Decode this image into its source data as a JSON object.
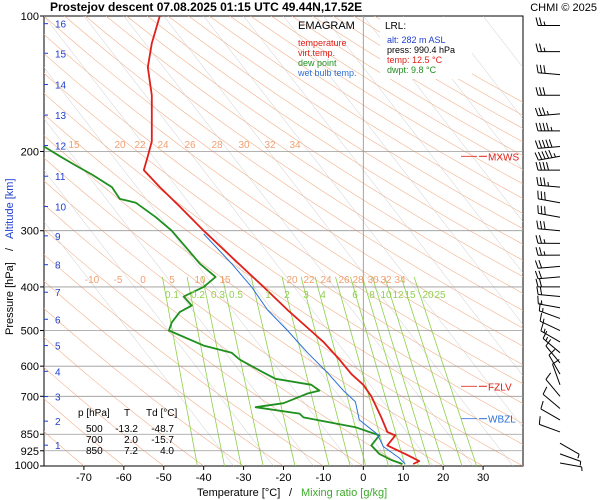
{
  "chart_data": {
    "type": "line",
    "title": "Prostejov   descent   07.08.2025 01:15 UTC  49.44N,17.52E",
    "credit": "CHMI © 2025",
    "xlabel_temp": "Temperature [°C]",
    "xlabel_sep": "/",
    "xlabel_mix": "Mixing ratio [g/kg]",
    "ylabel_pressure": "Pressure [hPa]",
    "ylabel_sep": "/",
    "ylabel_alt": "Altitude [km]",
    "xlim": [
      -80,
      40
    ],
    "ylim": [
      1000,
      100
    ],
    "y_scale": "log",
    "x_ticks": [
      -70,
      -60,
      -50,
      -40,
      -30,
      -20,
      -10,
      0,
      10,
      20,
      30
    ],
    "pressure_ticks": [
      100,
      200,
      300,
      400,
      500,
      600,
      700,
      850,
      925,
      1000
    ],
    "altitude_ticks": [
      {
        "km": 1,
        "p": 899
      },
      {
        "km": 2,
        "p": 795
      },
      {
        "km": 3,
        "p": 701
      },
      {
        "km": 4,
        "p": 616
      },
      {
        "km": 5,
        "p": 540
      },
      {
        "km": 6,
        "p": 472
      },
      {
        "km": 7,
        "p": 411
      },
      {
        "km": 8,
        "p": 357
      },
      {
        "km": 9,
        "p": 308
      },
      {
        "km": 10,
        "p": 265
      },
      {
        "km": 11,
        "p": 227
      },
      {
        "km": 12,
        "p": 194
      },
      {
        "km": 13,
        "p": 166
      },
      {
        "km": 14,
        "p": 142
      },
      {
        "km": 15,
        "p": 121
      },
      {
        "km": 16,
        "p": 104
      }
    ],
    "legend": {
      "title": "EMAGRAM",
      "items": [
        {
          "label": "temperature",
          "color": "#e0201a"
        },
        {
          "label": "virt.temp.",
          "color": "#e0201a"
        },
        {
          "label": "dew point",
          "color": "#1f8f1f"
        },
        {
          "label": "wet bulb temp.",
          "color": "#2a6fd6"
        }
      ]
    },
    "lrl": {
      "title": "LRL:",
      "alt": "alt: 282 m ASL",
      "press": "press: 990.4 hPa",
      "temp": "temp: 12.5 °C",
      "dwpt": "dwpt: 9.8 °C"
    },
    "levels": [
      {
        "label": "MXWS",
        "p": 205,
        "color": "#e0201a"
      },
      {
        "label": "FZLV",
        "p": 665,
        "color": "#e0201a"
      },
      {
        "label": "WBZL",
        "p": 785,
        "color": "#2a6fd6"
      }
    ],
    "table": {
      "headers": [
        "p [hPa]",
        "T",
        "Td [°C]"
      ],
      "rows": [
        [
          "500",
          "-13.2",
          "-48.7"
        ],
        [
          "700",
          "2.0",
          "-15.7"
        ],
        [
          "850",
          "7.2",
          "4.0"
        ]
      ]
    },
    "mixing_labels_upper": [
      "15",
      "20",
      "22",
      "24",
      "26",
      "28",
      "30",
      "32",
      "34"
    ],
    "mixing_labels_mid": [
      "-10",
      "-5",
      "0",
      "5",
      "10",
      "15",
      "20",
      "22",
      "24",
      "26",
      "28",
      "30",
      "32",
      "34"
    ],
    "mixing_ratio_labels": [
      "0.1",
      "0.2",
      "0.3",
      "0.5",
      "1",
      "2",
      "3",
      "4",
      "6",
      "8",
      "10",
      "12",
      "15",
      "20",
      "25"
    ],
    "series": [
      {
        "name": "temperature",
        "color": "#e0201a",
        "points": [
          [
            12.5,
            990
          ],
          [
            14,
            975
          ],
          [
            11,
            945
          ],
          [
            6,
            900
          ],
          [
            8,
            855
          ],
          [
            6,
            840
          ],
          [
            4.5,
            780
          ],
          [
            2,
            700
          ],
          [
            0,
            660
          ],
          [
            -3,
            625
          ],
          [
            -6,
            580
          ],
          [
            -10,
            530
          ],
          [
            -13.2,
            500
          ],
          [
            -19,
            450
          ],
          [
            -25,
            400
          ],
          [
            -32,
            350
          ],
          [
            -40,
            300
          ],
          [
            -46,
            265
          ],
          [
            -51,
            240
          ],
          [
            -55,
            220
          ],
          [
            -54,
            205
          ],
          [
            -53,
            190
          ],
          [
            -53,
            170
          ],
          [
            -53,
            150
          ],
          [
            -54,
            130
          ],
          [
            -53,
            115
          ],
          [
            -51,
            100
          ]
        ]
      },
      {
        "name": "dew point",
        "color": "#1f8f1f",
        "points": [
          [
            9.8,
            990
          ],
          [
            7,
            970
          ],
          [
            4,
            940
          ],
          [
            2,
            900
          ],
          [
            4,
            855
          ],
          [
            -2,
            820
          ],
          [
            -15,
            780
          ],
          [
            -16,
            765
          ],
          [
            -27,
            740
          ],
          [
            -20,
            725
          ],
          [
            -15.7,
            700
          ],
          [
            -14,
            690
          ],
          [
            -11,
            680
          ],
          [
            -13,
            660
          ],
          [
            -22,
            640
          ],
          [
            -25,
            620
          ],
          [
            -31,
            580
          ],
          [
            -33,
            560
          ],
          [
            -40,
            540
          ],
          [
            -48.7,
            500
          ],
          [
            -48,
            480
          ],
          [
            -46,
            455
          ],
          [
            -43,
            440
          ],
          [
            -45,
            420
          ],
          [
            -40,
            400
          ],
          [
            -37,
            380
          ],
          [
            -41,
            355
          ],
          [
            -44,
            330
          ],
          [
            -48,
            300
          ],
          [
            -52,
            280
          ],
          [
            -57,
            260
          ],
          [
            -61,
            255
          ],
          [
            -63,
            240
          ],
          [
            -68,
            225
          ],
          [
            -72,
            215
          ],
          [
            -76,
            205
          ],
          [
            -80,
            195
          ]
        ]
      },
      {
        "name": "wet bulb temp.",
        "color": "#2a6fd6",
        "points": [
          [
            10.5,
            990
          ],
          [
            9,
            960
          ],
          [
            5,
            905
          ],
          [
            3.5,
            850
          ],
          [
            -1,
            790
          ],
          [
            -2,
            720
          ],
          [
            -5,
            680
          ],
          [
            -9,
            620
          ],
          [
            -14,
            560
          ],
          [
            -19,
            500
          ],
          [
            -24,
            450
          ],
          [
            -28,
            400
          ],
          [
            -33,
            355
          ],
          [
            -40,
            305
          ]
        ]
      }
    ],
    "wind_barbs": [
      {
        "p": 105,
        "dir": 270,
        "kt": 25
      },
      {
        "p": 120,
        "dir": 270,
        "kt": 25
      },
      {
        "p": 135,
        "dir": 275,
        "kt": 30
      },
      {
        "p": 150,
        "dir": 270,
        "kt": 30
      },
      {
        "p": 165,
        "dir": 265,
        "kt": 35
      },
      {
        "p": 180,
        "dir": 270,
        "kt": 45
      },
      {
        "p": 195,
        "dir": 265,
        "kt": 50
      },
      {
        "p": 205,
        "dir": 260,
        "kt": 55
      },
      {
        "p": 220,
        "dir": 270,
        "kt": 40
      },
      {
        "p": 240,
        "dir": 275,
        "kt": 35
      },
      {
        "p": 260,
        "dir": 280,
        "kt": 30
      },
      {
        "p": 280,
        "dir": 280,
        "kt": 30
      },
      {
        "p": 300,
        "dir": 275,
        "kt": 30
      },
      {
        "p": 320,
        "dir": 270,
        "kt": 25
      },
      {
        "p": 340,
        "dir": 270,
        "kt": 25
      },
      {
        "p": 360,
        "dir": 265,
        "kt": 20
      },
      {
        "p": 380,
        "dir": 265,
        "kt": 20
      },
      {
        "p": 400,
        "dir": 270,
        "kt": 20
      },
      {
        "p": 420,
        "dir": 275,
        "kt": 20
      },
      {
        "p": 445,
        "dir": 280,
        "kt": 15
      },
      {
        "p": 470,
        "dir": 290,
        "kt": 15
      },
      {
        "p": 500,
        "dir": 295,
        "kt": 15
      },
      {
        "p": 530,
        "dir": 300,
        "kt": 15
      },
      {
        "p": 560,
        "dir": 310,
        "kt": 15
      },
      {
        "p": 590,
        "dir": 320,
        "kt": 10
      },
      {
        "p": 625,
        "dir": 330,
        "kt": 10
      },
      {
        "p": 660,
        "dir": 340,
        "kt": 10
      },
      {
        "p": 700,
        "dir": 320,
        "kt": 10
      },
      {
        "p": 745,
        "dir": 310,
        "kt": 10
      },
      {
        "p": 790,
        "dir": 300,
        "kt": 10
      },
      {
        "p": 840,
        "dir": 290,
        "kt": 10
      },
      {
        "p": 890,
        "dir": 120,
        "kt": 5
      },
      {
        "p": 940,
        "dir": 110,
        "kt": 5
      },
      {
        "p": 985,
        "dir": 100,
        "kt": 5
      }
    ],
    "colors": {
      "grid": "#bbbbbb",
      "dry_adiabat": "#f2b08a",
      "moist_adiabat": "#f6c8a8",
      "mixing": "#8fcf4a",
      "mix_label": "#92d050",
      "mid_label": "#f0a070",
      "axis": "#000000",
      "alt_label": "#1f3fcf",
      "credit": "#d02020"
    }
  }
}
